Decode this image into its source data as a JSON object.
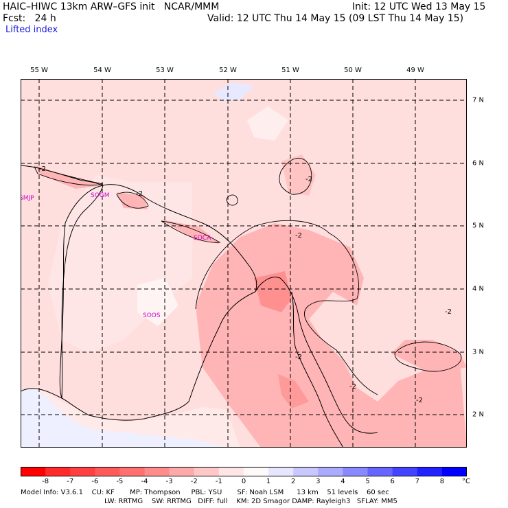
{
  "header": {
    "left1": "HAIC–HIWC 13km ARW–GFS init   NCAR/MMM",
    "left2": "Fcst:   24 h",
    "right1": "Init: 12 UTC Wed 13 May 15",
    "right2": "Valid: 12 UTC Thu 14 May 15 (09 LST Thu 14 May 15)",
    "field": "Lifted index"
  },
  "lon_labels": [
    "55 W",
    "54 W",
    "53 W",
    "52 W",
    "51 W",
    "50 W",
    "49 W"
  ],
  "lat_labels": [
    "7 N",
    "6 N",
    "5 N",
    "4 N",
    "3 N",
    "2 N"
  ],
  "stations": [
    "SMJP",
    "SOGM",
    "SOCA",
    "SOOS"
  ],
  "contour_labels": [
    "-2",
    "-2",
    "-2",
    "-2",
    "-2",
    "-2",
    "-2",
    "-2"
  ],
  "colorbar": {
    "ticks": [
      "-8",
      "-7",
      "-6",
      "-5",
      "-4",
      "-3",
      "-2",
      "-1",
      "0",
      "1",
      "2",
      "3",
      "4",
      "5",
      "6",
      "7",
      "8"
    ],
    "unit": "°C",
    "colors": [
      "#ff0000",
      "#ff2a2a",
      "#ff4040",
      "#ff5a5a",
      "#ff7070",
      "#ff8c8c",
      "#ffaaaa",
      "#ffc8c8",
      "#ffe6e6",
      "#fffafa",
      "#e6e6ff",
      "#c8c8ff",
      "#aaaaff",
      "#8888ff",
      "#6666ff",
      "#4444ff",
      "#2222ff",
      "#0000ff"
    ]
  },
  "footer": {
    "line1": "Model Info: V3.6.1    CU: KF       MP: Thompson     PBL: YSU       SF: Noah LSM      13 km    51 levels    60 sec",
    "line2": "LW: RRTMG    SW: RRTMG   DIFF: full    KM: 2D Smagor DAMP: Rayleigh3   SFLAY: MM5"
  }
}
